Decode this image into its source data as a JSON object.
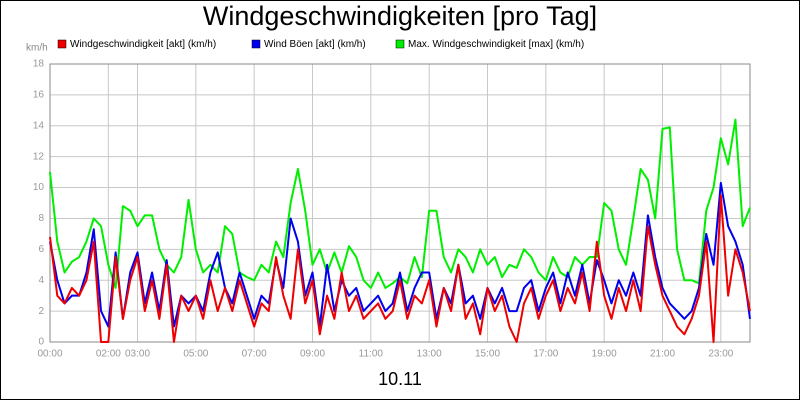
{
  "chart_data": {
    "type": "line",
    "title": "Windgeschwindigkeiten [pro Tag]",
    "ylabel": "km/h",
    "xlabel": "10.11",
    "ylim": [
      0,
      18
    ],
    "yticks": [
      0,
      2,
      4,
      6,
      8,
      10,
      12,
      14,
      16,
      18
    ],
    "xlim": [
      0,
      24
    ],
    "xticks": [
      {
        "value": 0,
        "label": "00:00"
      },
      {
        "value": 2,
        "label": "02:00"
      },
      {
        "value": 3,
        "label": "03:00"
      },
      {
        "value": 5,
        "label": "05:00"
      },
      {
        "value": 7,
        "label": "07:00"
      },
      {
        "value": 9,
        "label": "09:00"
      },
      {
        "value": 11,
        "label": "11:00"
      },
      {
        "value": 13,
        "label": "13:00"
      },
      {
        "value": 15,
        "label": "15:00"
      },
      {
        "value": 17,
        "label": "17:00"
      },
      {
        "value": 19,
        "label": "19:00"
      },
      {
        "value": 21,
        "label": "21:00"
      },
      {
        "value": 23,
        "label": "23:00"
      }
    ],
    "grid": true,
    "legend": "top",
    "x": [
      0,
      0.25,
      0.5,
      0.75,
      1,
      1.25,
      1.5,
      1.75,
      2,
      2.25,
      2.5,
      2.75,
      3,
      3.25,
      3.5,
      3.75,
      4,
      4.25,
      4.5,
      4.75,
      5,
      5.25,
      5.5,
      5.75,
      6,
      6.25,
      6.5,
      6.75,
      7,
      7.25,
      7.5,
      7.75,
      8,
      8.25,
      8.5,
      8.75,
      9,
      9.25,
      9.5,
      9.75,
      10,
      10.25,
      10.5,
      10.75,
      11,
      11.25,
      11.5,
      11.75,
      12,
      12.25,
      12.5,
      12.75,
      13,
      13.25,
      13.5,
      13.75,
      14,
      14.25,
      14.5,
      14.75,
      15,
      15.25,
      15.5,
      15.75,
      16,
      16.25,
      16.5,
      16.75,
      17,
      17.25,
      17.5,
      17.75,
      18,
      18.25,
      18.5,
      18.75,
      19,
      19.25,
      19.5,
      19.75,
      20,
      20.25,
      20.5,
      20.75,
      21,
      21.25,
      21.5,
      21.75,
      22,
      22.25,
      22.5,
      22.75,
      23,
      23.25,
      23.5,
      23.75,
      24
    ],
    "series": [
      {
        "name": "Max. Windgeschwindigkeit [max] (km/h)",
        "color": "#00ee00",
        "values": [
          11,
          6.5,
          4.5,
          5.2,
          5.5,
          6.5,
          8,
          7.5,
          5,
          3.5,
          8.8,
          8.5,
          7.5,
          8.2,
          8.2,
          6,
          5,
          4.5,
          5.5,
          9.2,
          6,
          4.5,
          5,
          4.5,
          7.5,
          7,
          4.5,
          4.2,
          4,
          5,
          4.5,
          6.5,
          5.5,
          9,
          11.2,
          8.5,
          5,
          6,
          4.5,
          5.8,
          4.5,
          6.2,
          5.5,
          4,
          3.5,
          4.5,
          3.5,
          3.8,
          4.2,
          3.8,
          5.5,
          4.2,
          8.5,
          8.5,
          5.5,
          4.5,
          6,
          5.5,
          4.5,
          6,
          5,
          5.5,
          4.2,
          5,
          4.8,
          6,
          5.5,
          4.5,
          4,
          5.5,
          4.5,
          4.2,
          5.5,
          5,
          5.5,
          5.5,
          9,
          8.5,
          6,
          5,
          8,
          11.2,
          10.5,
          8,
          13.8,
          13.9,
          6,
          4,
          4,
          3.8,
          8.5,
          10,
          13.2,
          11.5,
          14.4,
          7.5,
          8.7
        ]
      },
      {
        "name": "Wind Böen [akt] (km/h)",
        "color": "#0000ee",
        "values": [
          6.5,
          4,
          2.5,
          3,
          3,
          4.5,
          7.3,
          2,
          1,
          5.8,
          1.5,
          4.5,
          5.8,
          2.5,
          4.5,
          2,
          5.3,
          1,
          3,
          2.5,
          3,
          2,
          4.5,
          5.8,
          3.5,
          2.5,
          4.5,
          3,
          1.5,
          3,
          2.5,
          5.3,
          3.5,
          8,
          6.5,
          3,
          4.5,
          1,
          5,
          2,
          4,
          3,
          3.5,
          2,
          2.5,
          3,
          2,
          2.5,
          4.5,
          2,
          3.5,
          4.5,
          4.5,
          1.5,
          3.5,
          2.5,
          5,
          2.5,
          3,
          1.5,
          3.5,
          2.5,
          3.5,
          2,
          2,
          3.5,
          4,
          2,
          3.5,
          4.5,
          2.5,
          4.5,
          3,
          5,
          2.5,
          5.3,
          4,
          2.5,
          4,
          3,
          4.5,
          3,
          8.2,
          5.5,
          3.5,
          2.5,
          2,
          1.5,
          2,
          3.5,
          7,
          5,
          10.3,
          7.5,
          6.5,
          5,
          1.5
        ]
      },
      {
        "name": "Windgeschwindigkeit [akt] (km/h)",
        "color": "#ee0000",
        "values": [
          6.8,
          3,
          2.5,
          3.5,
          3,
          4,
          6.5,
          0,
          0,
          5.5,
          1.5,
          4,
          5.5,
          2,
          4,
          1.5,
          5,
          0,
          3,
          2,
          3,
          1.5,
          4,
          2,
          3.5,
          2,
          4,
          2.5,
          1,
          2.5,
          2,
          5.5,
          3,
          1.5,
          6,
          2.5,
          4,
          0.5,
          3,
          1.5,
          4.5,
          2,
          3,
          1.5,
          2,
          2.5,
          1.5,
          2,
          4,
          1.5,
          3,
          2.5,
          4,
          1,
          3.5,
          2,
          5,
          1.5,
          2.5,
          0.5,
          3.5,
          2,
          3,
          1,
          0,
          2.5,
          3.5,
          1.5,
          3,
          4,
          2,
          3.5,
          2.5,
          4.5,
          2,
          6.5,
          3,
          1.5,
          3.5,
          2,
          4,
          2,
          7.5,
          5,
          3,
          2,
          1,
          0.5,
          1.5,
          3,
          6.5,
          0,
          9.5,
          3,
          6,
          4.5,
          2
        ]
      }
    ]
  }
}
